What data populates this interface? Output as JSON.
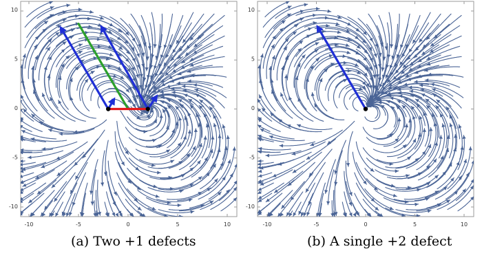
{
  "panels": [
    {
      "id": "a",
      "caption": "(a) Two +1 defects",
      "defects": [
        {
          "x": -2,
          "y": 0,
          "charge": 1
        },
        {
          "x": 2,
          "y": 0,
          "charge": 1
        }
      ],
      "vectors": [
        {
          "from": [
            -2,
            0
          ],
          "to": [
            -6.9,
            8.5
          ],
          "color": "#1f2fd6"
        },
        {
          "from": [
            2,
            0
          ],
          "to": [
            -2.8,
            8.6
          ],
          "color": "#1f2fd6"
        },
        {
          "from": [
            -2,
            0
          ],
          "to": [
            -1.3,
            1.2
          ],
          "color": "#1f2fd6"
        },
        {
          "from": [
            2,
            0
          ],
          "to": [
            3.0,
            1.5
          ],
          "color": "#1f2fd6"
        }
      ],
      "segments": [
        {
          "from": [
            0,
            0
          ],
          "to": [
            -5.0,
            8.7
          ],
          "color": "#2ca02c"
        },
        {
          "from": [
            -2,
            0
          ],
          "to": [
            2,
            0
          ],
          "color": "#e31a1c"
        }
      ]
    },
    {
      "id": "b",
      "caption": "(b) A single +2 defect",
      "defects": [
        {
          "x": 0,
          "y": 0,
          "charge": 2
        }
      ],
      "vectors": [
        {
          "from": [
            0,
            0
          ],
          "to": [
            -5.0,
            8.6
          ],
          "color": "#1f2fd6"
        }
      ],
      "segments": []
    }
  ],
  "axes": {
    "xticks": [
      "-10",
      "-5",
      "0",
      "5",
      "10"
    ],
    "yticks": [
      "10",
      "5",
      "0",
      "-5",
      "-10"
    ]
  },
  "style": {
    "stream_color": "#4a6496"
  }
}
